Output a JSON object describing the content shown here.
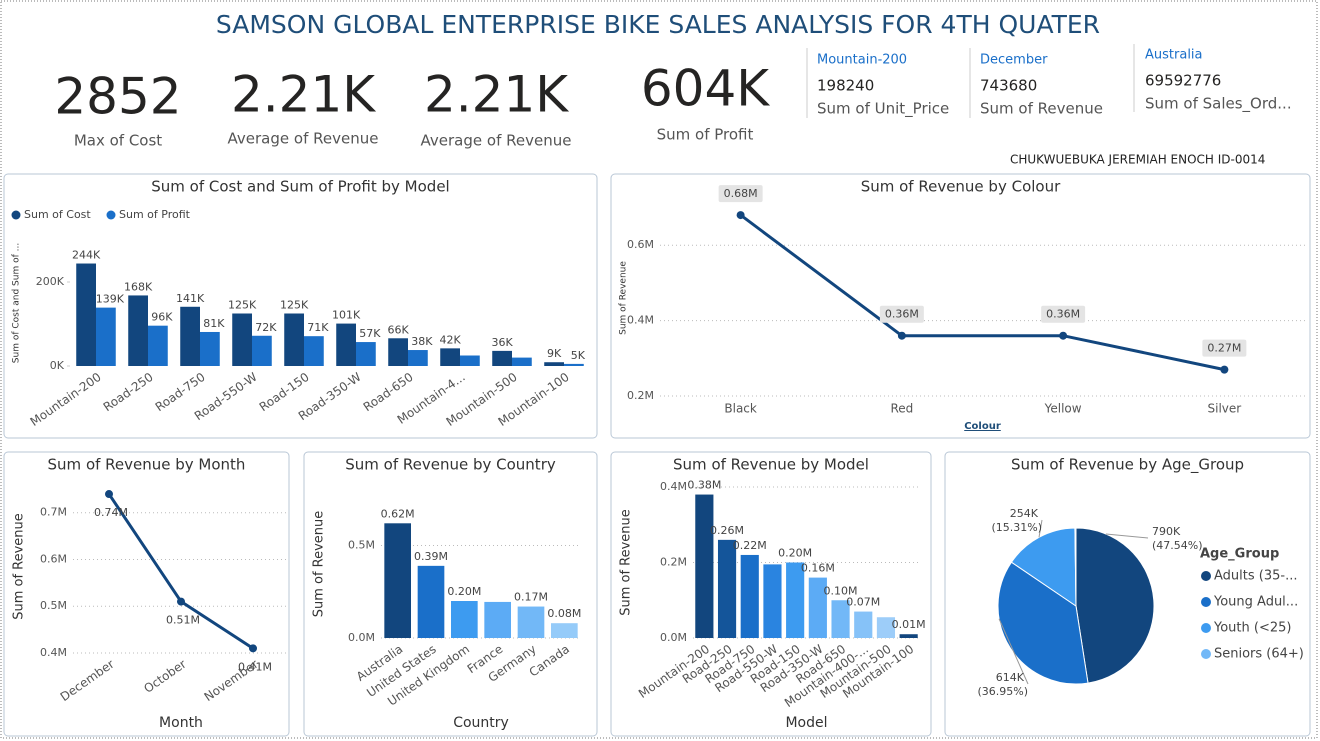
{
  "header": {
    "title": "SAMSON GLOBAL ENTERPRISE BIKE SALES ANALYSIS FOR 4TH QUATER"
  },
  "kpis": [
    {
      "value": "2852",
      "label": "Max of Cost"
    },
    {
      "value": "2.21K",
      "label": "Average of Revenue"
    },
    {
      "value": "2.21K",
      "label": "Average of Revenue"
    },
    {
      "value": "604K",
      "label": "Sum of Profit"
    }
  ],
  "cards": [
    {
      "category": "Mountain-200",
      "value": "198240",
      "label": "Sum of Unit_Price"
    },
    {
      "category": "December",
      "value": "743680",
      "label": "Sum of Revenue"
    },
    {
      "category": "Australia",
      "value": "69592776",
      "label": "Sum of Sales_Ord..."
    }
  ],
  "author": "CHUKWUEBUKA JEREMIAH ENOCH ID-0014",
  "chart_data": [
    {
      "type": "grouped_bar",
      "title": "Sum of Cost and Sum of Profit by Model",
      "y_label": "Sum of Cost and Sum of ...",
      "categories": [
        "Mountain-200",
        "Road-250",
        "Road-750",
        "Road-550-W",
        "Road-150",
        "Road-350-W",
        "Road-650",
        "Mountain-4...",
        "Mountain-500",
        "Mountain-100"
      ],
      "series": [
        {
          "name": "Sum of Cost",
          "color": "#12467e",
          "values": [
            244000,
            168000,
            141000,
            125000,
            125000,
            101000,
            66000,
            42000,
            36000,
            9000
          ],
          "value_labels": [
            "244K",
            "168K",
            "141K",
            "125K",
            "125K",
            "101K",
            "66K",
            "42K",
            "36K",
            "9K"
          ]
        },
        {
          "name": "Sum of Profit",
          "color": "#1a6fc9",
          "values": [
            139000,
            96000,
            81000,
            72000,
            71000,
            57000,
            38000,
            25000,
            20000,
            5000
          ],
          "value_labels": [
            "139K",
            "96K",
            "81K",
            "72K",
            "71K",
            "57K",
            "38K",
            null,
            null,
            "5K"
          ]
        }
      ],
      "ylim": [
        0,
        300000
      ],
      "yticks": [
        {
          "value": 0,
          "label": "0K"
        },
        {
          "value": 200000,
          "label": "200K"
        }
      ],
      "grid": false
    },
    {
      "type": "line",
      "title": "Sum of Revenue by Colour",
      "x_label": "Colour",
      "y_label": "Sum of Revenue",
      "categories": [
        "Black",
        "Red",
        "Yellow",
        "Silver"
      ],
      "values": [
        680000,
        360000,
        360000,
        270000
      ],
      "value_labels": [
        "0.68M",
        "0.36M",
        "0.36M",
        "0.27M"
      ],
      "color": "#12467e",
      "ylim": [
        200000,
        720000
      ],
      "yticks": [
        {
          "value": 200000,
          "label": "0.2M"
        },
        {
          "value": 400000,
          "label": "0.4M"
        },
        {
          "value": 600000,
          "label": "0.6M"
        }
      ],
      "grid": true
    },
    {
      "type": "line",
      "title": "Sum of Revenue by Month",
      "x_label": "Month",
      "y_label": "Sum of Revenue",
      "categories": [
        "December",
        "October",
        "November"
      ],
      "values": [
        740000,
        510000,
        410000
      ],
      "value_labels": [
        "0.74M",
        "0.51M",
        "0.41M"
      ],
      "color": "#12467e",
      "ylim": [
        400000,
        770000
      ],
      "yticks": [
        {
          "value": 400000,
          "label": "0.4M"
        },
        {
          "value": 500000,
          "label": "0.5M"
        },
        {
          "value": 600000,
          "label": "0.6M"
        },
        {
          "value": 700000,
          "label": "0.7M"
        }
      ],
      "grid": true
    },
    {
      "type": "bar",
      "title": "Sum of Revenue by Country",
      "x_label": "Country",
      "y_label": "Sum of Revenue",
      "categories": [
        "Australia",
        "United States",
        "United Kingdom",
        "France",
        "Germany",
        "Canada"
      ],
      "values": [
        620000,
        390000,
        200000,
        195000,
        170000,
        80000
      ],
      "value_labels": [
        "0.62M",
        "0.39M",
        "0.20M",
        null,
        "0.17M",
        "0.08M"
      ],
      "colors": [
        "#12467e",
        "#1a6fc9",
        "#3d9bf0",
        "#5cabf5",
        "#72b8f7",
        "#95cbf9"
      ],
      "ylim": [
        0,
        800000
      ],
      "yticks": [
        {
          "value": 0,
          "label": "0.0M"
        },
        {
          "value": 500000,
          "label": "0.5M"
        }
      ],
      "grid": true
    },
    {
      "type": "bar",
      "title": "Sum of Revenue by Model",
      "x_label": "Model",
      "y_label": "Sum of Revenue",
      "categories": [
        "Mountain-200",
        "Road-250",
        "Road-750",
        "Road-550-W",
        "Road-150",
        "Road-350-W",
        "Road-650",
        "Mountain-400-...",
        "Mountain-500",
        "Mountain-100"
      ],
      "values": [
        380000,
        260000,
        220000,
        195000,
        200000,
        160000,
        100000,
        70000,
        55000,
        10000
      ],
      "value_labels": [
        "0.38M",
        "0.26M",
        "0.22M",
        null,
        "0.20M",
        "0.16M",
        "0.10M",
        "0.07M",
        null,
        "0.01M"
      ],
      "colors": [
        "#12467e",
        "#14559a",
        "#1a6fc9",
        "#2a84e0",
        "#3d9bf0",
        "#5cabf5",
        "#72b8f7",
        "#86c2f8",
        "#9dcdf9",
        "#12467e"
      ],
      "ylim": [
        0,
        400000
      ],
      "yticks": [
        {
          "value": 0,
          "label": "0.0M"
        },
        {
          "value": 200000,
          "label": "0.2M"
        },
        {
          "value": 400000,
          "label": "0.4M"
        }
      ],
      "grid": true
    },
    {
      "type": "pie",
      "title": "Sum of Revenue by Age_Group",
      "legend_title": "Age_Group",
      "categories": [
        "Adults (35-...",
        "Young Adul...",
        "Youth (<25)",
        "Seniors (64+)"
      ],
      "values": [
        790000,
        614000,
        254000,
        3700
      ],
      "value_labels": [
        "790K",
        "614K",
        "254K",
        null
      ],
      "percent_labels": [
        "(47.54%)",
        "(36.95%)",
        "(15.31%)",
        null
      ],
      "colors": [
        "#12467e",
        "#1a6fc9",
        "#3d9bf0",
        "#72b8f7"
      ]
    }
  ]
}
